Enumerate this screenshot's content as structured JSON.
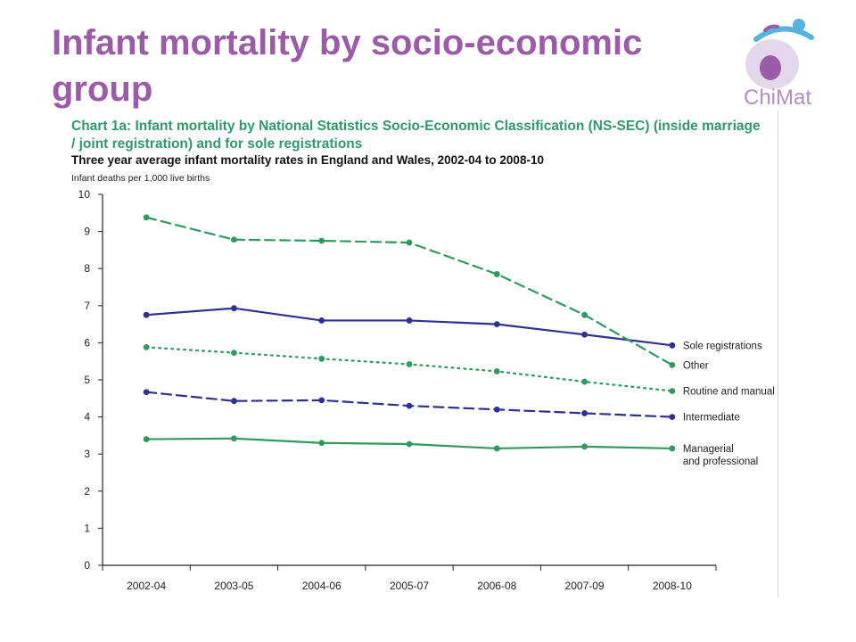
{
  "slide": {
    "title": "Infant mortality by socio-economic group",
    "logo_text": "ChiMat"
  },
  "colors": {
    "title": "#9b5ba8",
    "chart_title": "#2e9a6a",
    "green": "#2e9a5e",
    "blue": "#2e3192"
  },
  "chart_data": {
    "type": "line",
    "title": "Chart 1a: Infant mortality by National Statistics Socio-Economic Classification (NS-SEC) (inside marriage / joint registration) and for sole registrations",
    "subtitle": "Three year average infant mortality rates in England and Wales, 2002-04 to 2008-10",
    "ylabel": "Infant deaths per 1,000 live births",
    "xlabel": "",
    "ylim": [
      0,
      10
    ],
    "yticks": [
      "0",
      "1",
      "2",
      "3",
      "4",
      "5",
      "6",
      "7",
      "8",
      "9",
      "10"
    ],
    "categories": [
      "2002-04",
      "2003-05",
      "2004-06",
      "2005-07",
      "2006-08",
      "2007-09",
      "2008-10"
    ],
    "grid": false,
    "legend": "right (end-of-line labels)",
    "series": [
      {
        "name": "Sole registrations",
        "color": "#2e3192",
        "style": "solid",
        "values": [
          6.75,
          6.93,
          6.6,
          6.6,
          6.5,
          6.22,
          5.93
        ]
      },
      {
        "name": "Other",
        "color": "#2e9a5e",
        "style": "dashed",
        "values": [
          9.38,
          8.78,
          8.75,
          8.7,
          7.85,
          6.75,
          5.4
        ]
      },
      {
        "name": "Routine and manual",
        "color": "#2e9a5e",
        "style": "dotted",
        "values": [
          5.88,
          5.73,
          5.57,
          5.42,
          5.23,
          4.95,
          4.7
        ]
      },
      {
        "name": "Intermediate",
        "color": "#2e3192",
        "style": "dashed",
        "values": [
          4.67,
          4.43,
          4.45,
          4.3,
          4.2,
          4.1,
          4.0
        ]
      },
      {
        "name": "Managerial and professional",
        "color": "#2e9a5e",
        "style": "solid",
        "values": [
          3.4,
          3.42,
          3.3,
          3.27,
          3.15,
          3.2,
          3.15
        ]
      }
    ]
  }
}
